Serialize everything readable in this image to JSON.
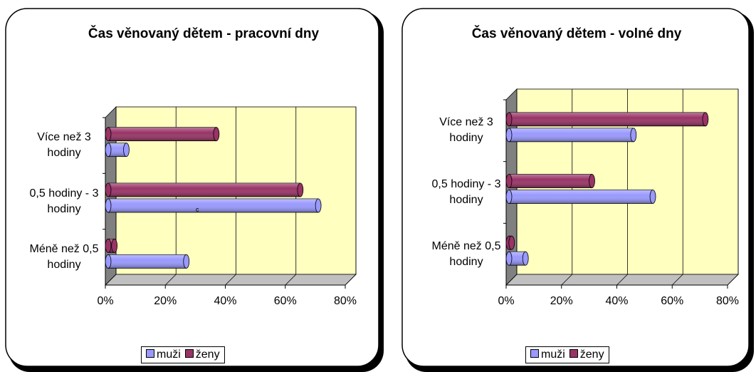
{
  "chart_data": [
    {
      "type": "bar",
      "orientation": "horizontal",
      "title": "Čas věnovaný dětem - pracovní dny",
      "categories": [
        "Více než 3 hodiny",
        "0,5 hodiny - 3 hodiny",
        "Méně než 0,5 hodiny"
      ],
      "series": [
        {
          "name": "muži",
          "color": "#9999ff",
          "values": [
            7,
            71,
            27
          ]
        },
        {
          "name": "ženy",
          "color": "#993366",
          "values": [
            37,
            65,
            3
          ]
        }
      ],
      "xlim": [
        0,
        80
      ],
      "xticks": [
        {
          "value": 0,
          "label": "0%"
        },
        {
          "value": 20,
          "label": "20%"
        },
        {
          "value": 40,
          "label": "40%"
        },
        {
          "value": 60,
          "label": "60%"
        },
        {
          "value": 80,
          "label": "80%"
        }
      ],
      "grid": true,
      "legend": "bottom",
      "annotation": "c"
    },
    {
      "type": "bar",
      "orientation": "horizontal",
      "title": "Čas věnovaný dětem - volné dny",
      "categories": [
        "Více než 3 hodiny",
        "0,5 hodiny - 3 hodiny",
        "Méně než 0,5 hodiny"
      ],
      "series": [
        {
          "name": "muži",
          "color": "#9999ff",
          "values": [
            46,
            53,
            7
          ]
        },
        {
          "name": "ženy",
          "color": "#993366",
          "values": [
            72,
            31,
            2
          ]
        }
      ],
      "xlim": [
        0,
        80
      ],
      "xticks": [
        {
          "value": 0,
          "label": "0%"
        },
        {
          "value": 20,
          "label": "20%"
        },
        {
          "value": 40,
          "label": "40%"
        },
        {
          "value": 60,
          "label": "60%"
        },
        {
          "value": 80,
          "label": "80%"
        }
      ],
      "grid": true,
      "legend": "bottom"
    }
  ]
}
